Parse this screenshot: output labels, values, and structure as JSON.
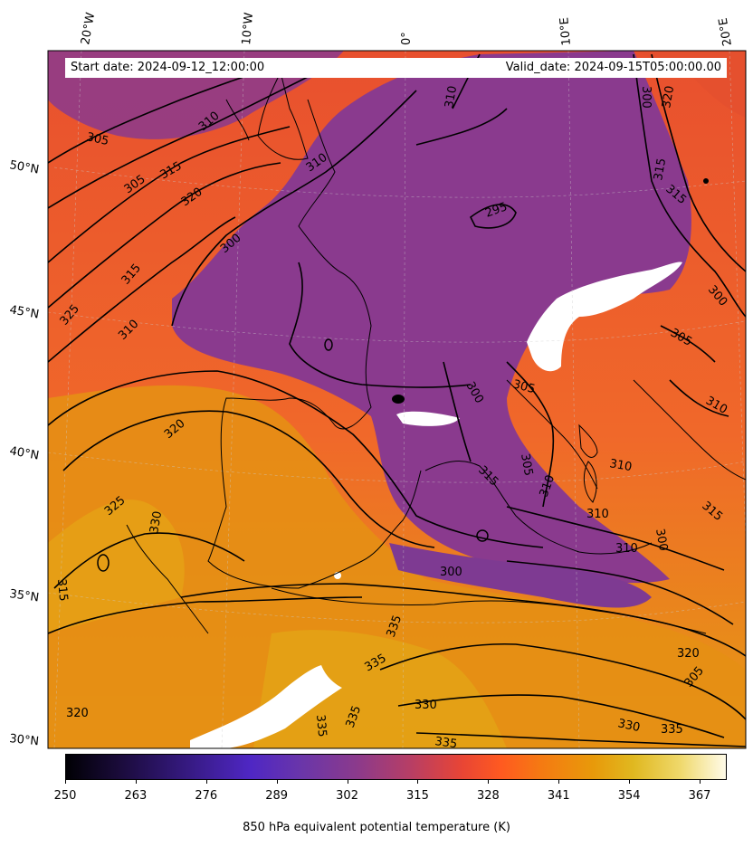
{
  "header": {
    "start_date": "Start date: 2024-09-12_12:00:00",
    "valid_date": "Valid_date: 2024-09-15T05:00:00.00"
  },
  "longitude_labels": [
    "20°W",
    "10°W",
    "0°",
    "10°E",
    "20°E"
  ],
  "latitude_labels": [
    "50°N",
    "45°N",
    "40°N",
    "35°N",
    "30°N"
  ],
  "contour_labels": [
    "305",
    "310",
    "305",
    "315",
    "320",
    "310",
    "300",
    "315",
    "325",
    "310",
    "320",
    "325",
    "330",
    "315",
    "320",
    "300",
    "295",
    "305",
    "305",
    "310",
    "300",
    "305",
    "310",
    "315",
    "310",
    "315",
    "310",
    "315",
    "300",
    "300",
    "320",
    "335",
    "335",
    "335",
    "330",
    "335",
    "330",
    "335",
    "335",
    "310",
    "315",
    "320",
    "305",
    "310",
    "300"
  ],
  "colorbar": {
    "ticks": [
      "250",
      "263",
      "276",
      "289",
      "302",
      "315",
      "328",
      "341",
      "354",
      "367"
    ],
    "label": "850 hPa equivalent potential temperature (K)",
    "colormap": "CMRmap-like",
    "min": 250,
    "max": 372
  },
  "colors": {
    "orange_red": "#f2542a",
    "purple": "#8b3a8c",
    "amber": "#e39a12",
    "coast": "#000000",
    "missing": "#ffffff"
  }
}
